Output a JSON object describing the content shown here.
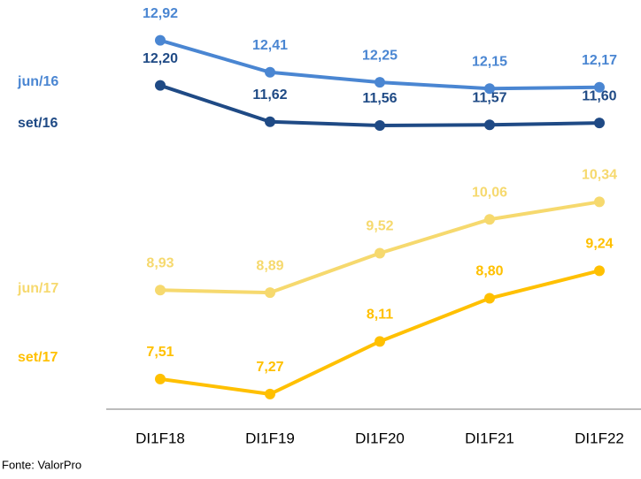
{
  "chart_data": {
    "type": "line",
    "categories": [
      "DI1F18",
      "DI1F19",
      "DI1F20",
      "DI1F21",
      "DI1F22"
    ],
    "series": [
      {
        "name": "jun/16",
        "color": "#4a86d2",
        "values": [
          12.92,
          12.41,
          12.25,
          12.15,
          12.17
        ],
        "value_labels": [
          "12,92",
          "12,41",
          "12,25",
          "12,15",
          "12,17"
        ]
      },
      {
        "name": "set/16",
        "color": "#1f4a85",
        "values": [
          12.2,
          11.62,
          11.56,
          11.57,
          11.6
        ],
        "value_labels": [
          "12,20",
          "11,62",
          "11,56",
          "11,57",
          "11,60"
        ]
      },
      {
        "name": "jun/17",
        "color": "#f6d96e",
        "values": [
          8.93,
          8.89,
          9.52,
          10.06,
          10.34
        ],
        "value_labels": [
          "8,93",
          "8,89",
          "9,52",
          "10,06",
          "10,34"
        ]
      },
      {
        "name": "set/17",
        "color": "#ffc000",
        "values": [
          7.51,
          7.27,
          8.11,
          8.8,
          9.24
        ],
        "value_labels": [
          "7,51",
          "7,27",
          "8,11",
          "8,80",
          "9,24"
        ]
      }
    ],
    "ylim": [
      7,
      13
    ],
    "source": "Fonte: ValorPro"
  }
}
